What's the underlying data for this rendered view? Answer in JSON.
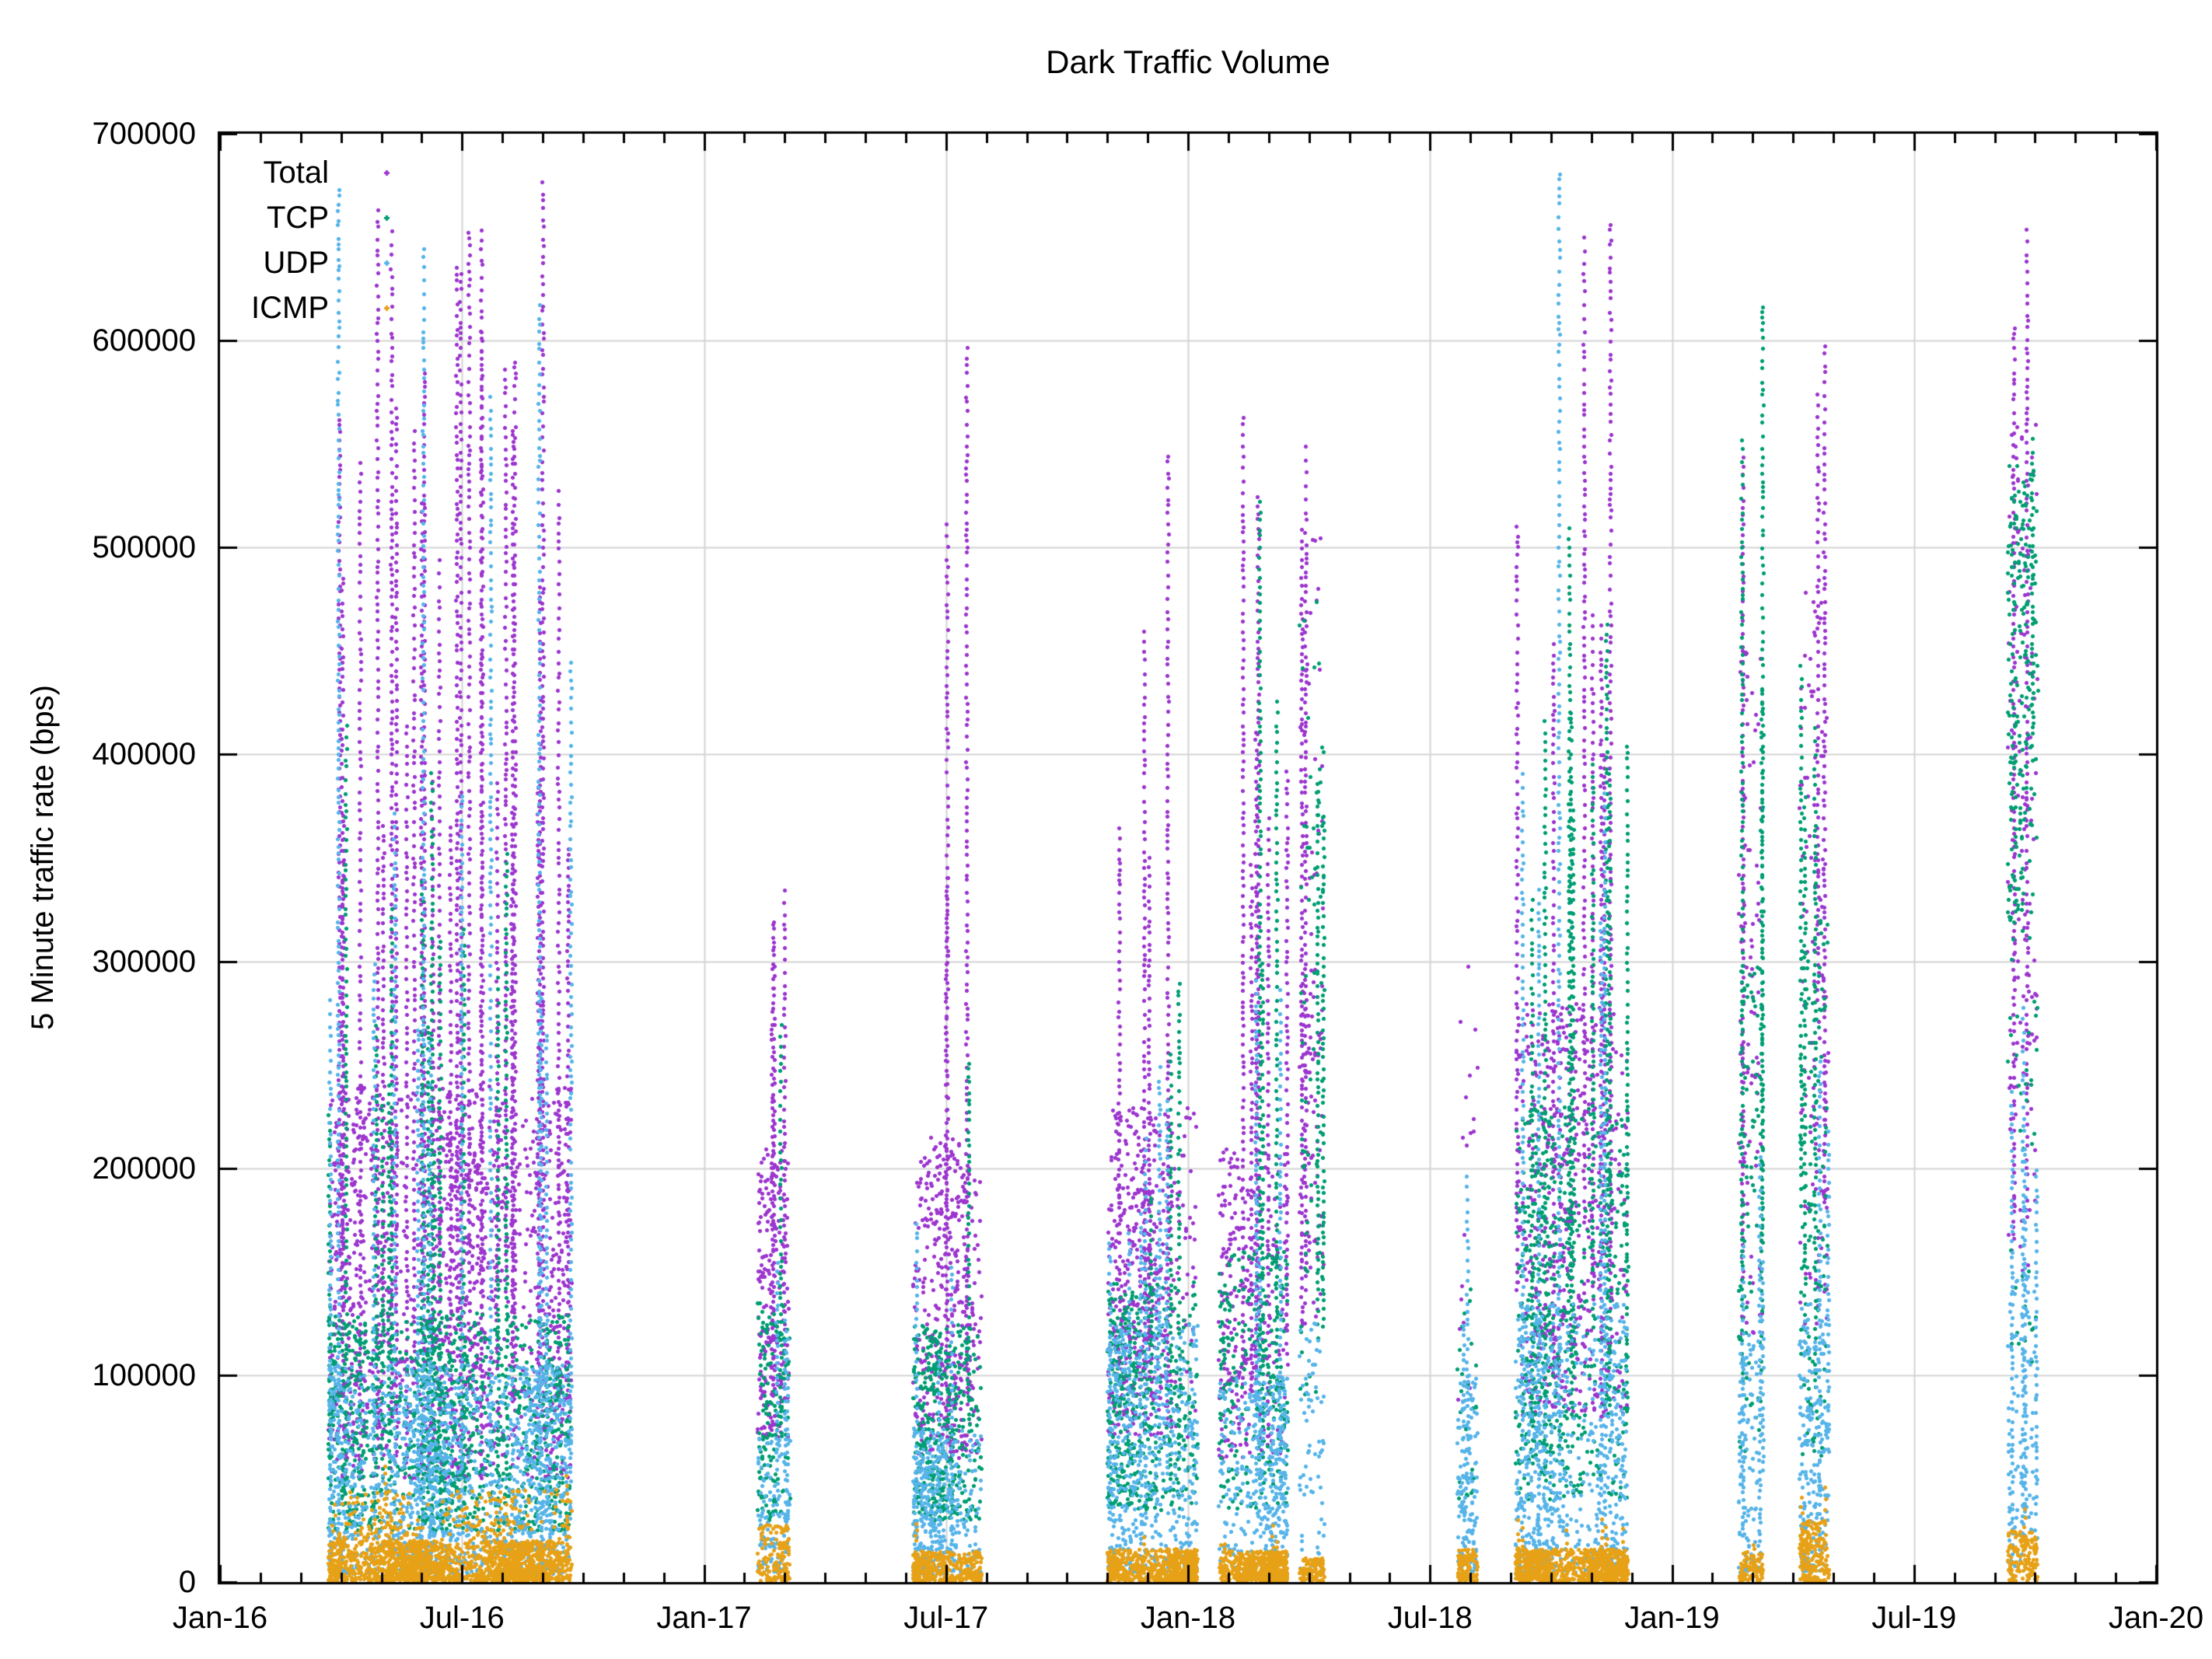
{
  "chart_data": {
    "type": "scatter",
    "title": "Dark Traffic Volume",
    "xlabel": "",
    "ylabel": "5 Minute traffic rate (bps)",
    "grid": {
      "horizontal": true,
      "vertical": true,
      "color": "#d4d4d4"
    },
    "marker": "plus",
    "y_axis": {
      "min": 0,
      "max": 700000,
      "tick_step": 100000,
      "ticks": [
        {
          "label": "0",
          "value": 0
        },
        {
          "label": "100000",
          "value": 100000
        },
        {
          "label": "200000",
          "value": 200000
        },
        {
          "label": "300000",
          "value": 300000
        },
        {
          "label": "400000",
          "value": 400000
        },
        {
          "label": "500000",
          "value": 500000
        },
        {
          "label": "600000",
          "value": 600000
        },
        {
          "label": "700000",
          "value": 700000
        }
      ]
    },
    "x_axis": {
      "unit": "months since Jan-2016",
      "min_month": 0,
      "max_month": 48,
      "minor_tick_interval_months": 1,
      "ticks": [
        {
          "label": "Jan-16",
          "month": 0
        },
        {
          "label": "Jul-16",
          "month": 6
        },
        {
          "label": "Jan-17",
          "month": 12
        },
        {
          "label": "Jul-17",
          "month": 18
        },
        {
          "label": "Jan-18",
          "month": 24
        },
        {
          "label": "Jul-18",
          "month": 30
        },
        {
          "label": "Jan-19",
          "month": 36
        },
        {
          "label": "Jul-19",
          "month": 42
        },
        {
          "label": "Jan-20",
          "month": 48
        }
      ]
    },
    "legend": {
      "position": "top-left-inside",
      "entries": [
        {
          "label": "Total"
        },
        {
          "label": "TCP"
        },
        {
          "label": "UDP"
        },
        {
          "label": "ICMP"
        }
      ]
    },
    "series": [
      {
        "name": "Total",
        "color": "#9d36cf"
      },
      {
        "name": "TCP",
        "color": "#009e73"
      },
      {
        "name": "UDP",
        "color": "#56b4e9"
      },
      {
        "name": "ICMP",
        "color": "#e6a117"
      }
    ],
    "bands": [
      {
        "id": "b1",
        "range": "mid-Mar-2016 to mid-Sep-2016",
        "t0": 2.7,
        "t1": 8.71,
        "series": {
          "Total": {
            "layers": [
              [
                50000,
                240000,
                1.5,
                1.1
              ]
            ],
            "spike": [
              700000,
              0.1
            ]
          },
          "TCP": {
            "layers": [
              [
                25000,
                130000,
                1.4,
                1.15
              ]
            ],
            "spike": [
              430000,
              0.05
            ]
          },
          "UDP": {
            "layers": [
              [
                4000,
                105000,
                1.7,
                1.25
              ]
            ],
            "spike": [
              680000,
              0.05
            ]
          },
          "ICMP": {
            "layers": [
              [
                800,
                20000,
                2.2,
                1.5
              ],
              [
                20000,
                45000,
                0.25,
                1.2
              ]
            ],
            "spike": [
              60000,
              0.03
            ]
          }
        }
      },
      {
        "id": "b2",
        "range": "mid-Feb-2017 to early-Mar-2017",
        "t0": 13.34,
        "t1": 14.11,
        "series": {
          "Total": {
            "layers": [
              [
                70000,
                210000,
                1.5,
                1.1
              ]
            ],
            "spike": [
              480000,
              0.07
            ]
          },
          "TCP": {
            "layers": [
              [
                30000,
                135000,
                1.5,
                1.1
              ]
            ],
            "spike": [
              300000,
              0.04
            ]
          },
          "UDP": {
            "layers": [
              [
                5000,
                70000,
                1.7,
                1.2
              ]
            ],
            "spike": [
              170000,
              0.05
            ]
          },
          "ICMP": {
            "layers": [
              [
                800,
                28000,
                2.2,
                1.4
              ]
            ],
            "spike": [
              45000,
              0.04
            ]
          }
        }
      },
      {
        "id": "b3",
        "range": "early-Jun-2017 to late-Jul-2017",
        "t0": 17.19,
        "t1": 18.87,
        "series": {
          "Total": {
            "layers": [
              [
                60000,
                215000,
                1.4,
                1.1
              ]
            ],
            "spike": [
              690000,
              0.06
            ]
          },
          "TCP": {
            "layers": [
              [
                30000,
                125000,
                1.5,
                1.1
              ]
            ],
            "spike": [
              380000,
              0.05
            ]
          },
          "UDP": {
            "layers": [
              [
                4000,
                75000,
                1.7,
                1.2
              ]
            ],
            "spike": [
              210000,
              0.05
            ]
          },
          "ICMP": {
            "layers": [
              [
                800,
                15000,
                2.2,
                1.4
              ]
            ],
            "spike": [
              30000,
              0.04
            ]
          }
        }
      },
      {
        "id": "b4",
        "range": "Nov-2017 to mid-Jan-2018",
        "t0": 22.01,
        "t1": 24.23,
        "series": {
          "Total": {
            "layers": [
              [
                70000,
                230000,
                1.5,
                1.1
              ]
            ],
            "spike": [
              670000,
              0.06
            ]
          },
          "TCP": {
            "layers": [
              [
                35000,
                145000,
                1.5,
                1.1
              ]
            ],
            "spike": [
              310000,
              0.04
            ]
          },
          "UDP": {
            "layers": [
              [
                5000,
                125000,
                1.7,
                1.25
              ]
            ],
            "spike": [
              260000,
              0.05
            ]
          },
          "ICMP": {
            "layers": [
              [
                800,
                16000,
                2.2,
                1.4
              ]
            ],
            "spike": [
              32000,
              0.04
            ]
          }
        }
      },
      {
        "id": "b5",
        "range": "late-Jan-2018 to mid-Mar-2018",
        "t0": 24.78,
        "t1": 26.45,
        "series": {
          "Total": {
            "layers": [
              [
                60000,
                210000,
                1.4,
                1.1
              ]
            ],
            "spike": [
              590000,
              0.07
            ]
          },
          "TCP": {
            "layers": [
              [
                35000,
                160000,
                1.5,
                1.05
              ]
            ],
            "spike": [
              560000,
              0.05
            ]
          },
          "UDP": {
            "layers": [
              [
                5000,
                100000,
                1.7,
                1.25
              ]
            ],
            "spike": [
              300000,
              0.05
            ]
          },
          "ICMP": {
            "layers": [
              [
                800,
                15000,
                2.2,
                1.4
              ]
            ],
            "spike": [
              30000,
              0.04
            ]
          }
        }
      },
      {
        "id": "b6",
        "range": "late-Mar-2018 to mid-Apr-2018",
        "t0": 26.77,
        "t1": 27.37,
        "series": {
          "Total": {
            "layers": [
              [
                120000,
                300000,
                0.9,
                1.0
              ],
              [
                300000,
                510000,
                0.7,
                0.9
              ]
            ],
            "spike": [
              700000,
              0.12
            ]
          },
          "TCP": {
            "layers": [
              [
                80000,
                300000,
                0.8,
                1.0
              ],
              [
                300000,
                480000,
                0.5,
                0.9
              ]
            ],
            "spike": [
              520000,
              0.08
            ]
          },
          "UDP": {
            "layers": [
              [
                5000,
                130000,
                1.7,
                1.25
              ]
            ],
            "spike": [
              260000,
              0.06
            ]
          },
          "ICMP": {
            "layers": [
              [
                800,
                12000,
                2.0,
                1.4
              ]
            ],
            "spike": [
              25000,
              0.03
            ]
          }
        }
      },
      {
        "id": "b7",
        "range": "late-Jul-2018 to mid-Aug-2018",
        "t0": 30.69,
        "t1": 31.17,
        "series": {
          "Total": {
            "layers": [
              [
                80000,
                300000,
                0.2,
                1.1
              ]
            ],
            "spike": [
              420000,
              0.05
            ]
          },
          "TCP": {
            "layers": [
              [
                40000,
                150000,
                0.3,
                1.1
              ]
            ],
            "spike": [
              350000,
              0.04
            ]
          },
          "UDP": {
            "layers": [
              [
                4000,
                100000,
                1.7,
                1.25
              ]
            ],
            "spike": [
              210000,
              0.05
            ]
          },
          "ICMP": {
            "layers": [
              [
                800,
                16000,
                2.2,
                1.4
              ]
            ],
            "spike": [
              35000,
              0.04
            ]
          }
        }
      },
      {
        "id": "b8",
        "range": "early-Sep-2018 to late-Nov-2018",
        "t0": 32.13,
        "t1": 34.89,
        "series": {
          "Total": {
            "layers": [
              [
                80000,
                280000,
                1.5,
                1.1
              ]
            ],
            "spike": [
              700000,
              0.08
            ]
          },
          "TCP": {
            "layers": [
              [
                40000,
                230000,
                1.5,
                1.05
              ]
            ],
            "spike": [
              620000,
              0.07
            ]
          },
          "UDP": {
            "layers": [
              [
                5000,
                135000,
                1.7,
                1.25
              ]
            ],
            "spike": [
              690000,
              0.05
            ]
          },
          "ICMP": {
            "layers": [
              [
                800,
                16000,
                2.2,
                1.4
              ]
            ],
            "spike": [
              32000,
              0.05
            ]
          }
        }
      },
      {
        "id": "b9",
        "range": "late-Feb-2019 to early-Mar-2019",
        "t0": 37.66,
        "t1": 38.26,
        "series": {
          "Total": {
            "layers": [
              [
                120000,
                450000,
                0.8,
                1.0
              ]
            ],
            "spike": [
              700000,
              0.1
            ]
          },
          "TCP": {
            "layers": [
              [
                60000,
                300000,
                0.8,
                1.05
              ]
            ],
            "spike": [
              660000,
              0.07
            ]
          },
          "UDP": {
            "layers": [
              [
                5000,
                120000,
                1.7,
                1.25
              ]
            ],
            "spike": [
              270000,
              0.05
            ]
          },
          "ICMP": {
            "layers": [
              [
                800,
                15000,
                2.2,
                1.4
              ]
            ],
            "spike": [
              30000,
              0.03
            ]
          }
        }
      },
      {
        "id": "b10",
        "range": "late-Mar-2019 to mid-Apr-2019",
        "t0": 39.17,
        "t1": 39.88,
        "series": {
          "Total": {
            "layers": [
              [
                120000,
                480000,
                0.85,
                1.0
              ]
            ],
            "spike": [
              700000,
              0.1
            ]
          },
          "TCP": {
            "layers": [
              [
                60000,
                330000,
                0.8,
                1.05
              ]
            ],
            "spike": [
              500000,
              0.06
            ]
          },
          "UDP": {
            "layers": [
              [
                5000,
                135000,
                1.7,
                1.25
              ]
            ],
            "spike": [
              310000,
              0.05
            ]
          },
          "ICMP": {
            "layers": [
              [
                800,
                30000,
                2.4,
                1.3
              ]
            ],
            "spike": [
              55000,
              0.06
            ]
          }
        }
      },
      {
        "id": "b11",
        "range": "mid-Sep-2019 to early-Oct-2019",
        "t0": 44.33,
        "t1": 45.05,
        "series": {
          "Total": {
            "layers": [
              [
                150000,
                560000,
                0.9,
                1.0
              ]
            ],
            "spike": [
              700000,
              0.1
            ]
          },
          "TCP": {
            "layers": [
              [
                320000,
                540000,
                2.0,
                1.0
              ],
              [
                100000,
                320000,
                0.7,
                1.1
              ]
            ],
            "spike": [
              560000,
              0.04
            ]
          },
          "UDP": {
            "layers": [
              [
                8000,
                150000,
                1.7,
                1.25
              ]
            ],
            "spike": [
              330000,
              0.05
            ]
          },
          "ICMP": {
            "layers": [
              [
                800,
                25000,
                2.2,
                1.4
              ]
            ],
            "spike": [
              40000,
              0.04
            ]
          }
        }
      }
    ]
  }
}
